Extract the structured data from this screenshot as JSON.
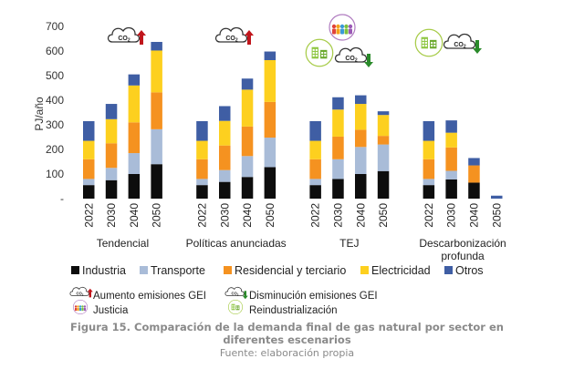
{
  "chart_data": {
    "type": "bar",
    "stacked": true,
    "ylabel": "PJ/año",
    "ylim": [
      0,
      700
    ],
    "yticks": [
      0,
      100,
      200,
      300,
      400,
      500,
      600,
      700
    ],
    "ytick_labels": [
      "-",
      "100",
      "200",
      "300",
      "400",
      "500",
      "600",
      "700"
    ],
    "groups": [
      {
        "label": "Tendencial",
        "categories": [
          "2022",
          "2030",
          "2040",
          "2050"
        ]
      },
      {
        "label": "Políticas anunciadas",
        "categories": [
          "2022",
          "2030",
          "2040",
          "2050"
        ]
      },
      {
        "label": "TEJ",
        "categories": [
          "2022",
          "2030",
          "2040",
          "2050"
        ]
      },
      {
        "label": "Descarbonización profunda",
        "label_lines": [
          "Descarbonización",
          "profunda"
        ],
        "categories": [
          "2022",
          "2030",
          "2040",
          "2050"
        ]
      }
    ],
    "series": [
      {
        "name": "Industria",
        "color": "#0d0d0d",
        "values": [
          [
            55,
            75,
            100,
            140
          ],
          [
            55,
            68,
            88,
            128
          ],
          [
            55,
            80,
            100,
            112
          ],
          [
            55,
            78,
            65,
            0
          ]
        ]
      },
      {
        "name": "Transporte",
        "color": "#a9bcd8",
        "values": [
          [
            25,
            50,
            85,
            142
          ],
          [
            25,
            48,
            85,
            120
          ],
          [
            25,
            80,
            110,
            108
          ],
          [
            25,
            35,
            0,
            0
          ]
        ]
      },
      {
        "name": "Residencial y terciario",
        "color": "#f59220",
        "values": [
          [
            80,
            100,
            125,
            150
          ],
          [
            80,
            100,
            120,
            145
          ],
          [
            80,
            92,
            70,
            35
          ],
          [
            80,
            95,
            70,
            0
          ]
        ]
      },
      {
        "name": "Electricidad",
        "color": "#fdd01f",
        "values": [
          [
            75,
            98,
            150,
            170
          ],
          [
            75,
            100,
            150,
            170
          ],
          [
            75,
            110,
            105,
            85
          ],
          [
            75,
            60,
            0,
            0
          ]
        ]
      },
      {
        "name": "Otros",
        "color": "#3f5ea4",
        "values": [
          [
            80,
            62,
            45,
            35
          ],
          [
            80,
            60,
            45,
            35
          ],
          [
            80,
            50,
            35,
            15
          ],
          [
            80,
            50,
            30,
            12
          ]
        ]
      }
    ],
    "annotations": [
      {
        "group": "Tendencial",
        "icon": "co2-cloud-icon",
        "trend": "up",
        "text": "CO2"
      },
      {
        "group": "Políticas anunciadas",
        "icon": "co2-cloud-icon",
        "trend": "up",
        "text": "CO2"
      },
      {
        "group": "TEJ",
        "icon": "co2-cloud-icon",
        "trend": "down",
        "text": "CO2",
        "extra_icons": [
          "justicia-icon",
          "reindustrializacion-icon"
        ]
      },
      {
        "group": "Descarbonización profunda",
        "icon": "co2-cloud-icon",
        "trend": "down",
        "text": "CO2",
        "extra_icons": [
          "reindustrializacion-icon"
        ]
      }
    ],
    "icon_legend": [
      {
        "label": "Aumento emisiones GEI",
        "icon": "co2-up-icon"
      },
      {
        "label": "Disminución emisiones GEI",
        "icon": "co2-down-icon"
      },
      {
        "label": "Justicia",
        "icon": "justicia-icon"
      },
      {
        "label": "Reindustrialización",
        "icon": "reindustrializacion-icon"
      }
    ],
    "legend_position": "bottom",
    "grid": false
  },
  "caption": {
    "title_line1": "Figura 15. Comparación de la demanda final de gas natural por sector en",
    "title_line2": "diferentes escenarios",
    "source": "Fuente: elaboración propia"
  }
}
